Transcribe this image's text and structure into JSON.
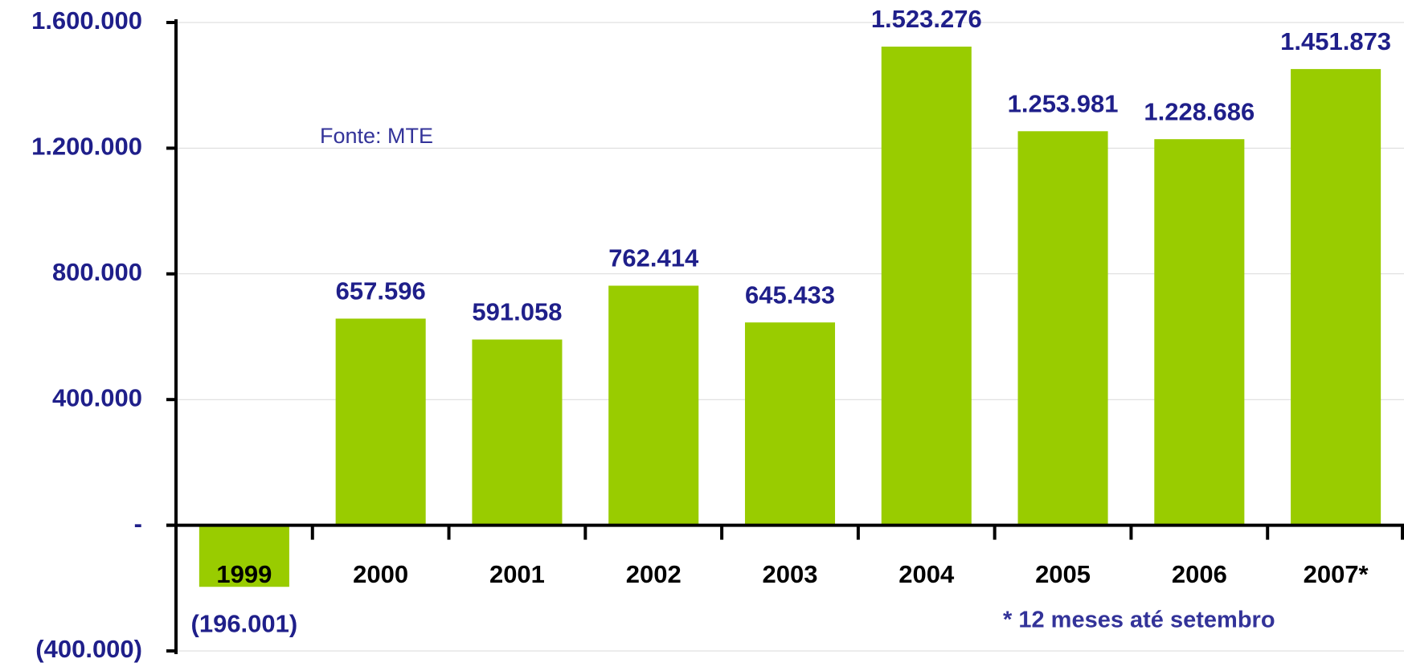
{
  "chart_data": {
    "type": "bar",
    "categories": [
      "1999",
      "2000",
      "2001",
      "2002",
      "2003",
      "2004",
      "2005",
      "2006",
      "2007*"
    ],
    "values": [
      -196001,
      657596,
      591058,
      762414,
      645433,
      1523276,
      1253981,
      1228686,
      1451873
    ],
    "value_labels": [
      "(196.001)",
      "657.596",
      "591.058",
      "762.414",
      "645.433",
      "1.523.276",
      "1.253.981",
      "1.228.686",
      "1.451.873"
    ],
    "color": "#99cc00",
    "ylim": [
      -400000,
      1600000
    ],
    "yticks": [
      {
        "value": -400000,
        "label": "(400.000)"
      },
      {
        "value": 0,
        "label": "-"
      },
      {
        "value": 400000,
        "label": "400.000"
      },
      {
        "value": 800000,
        "label": "800.000"
      },
      {
        "value": 1200000,
        "label": "1.200.000"
      },
      {
        "value": 1600000,
        "label": "1.600.000"
      }
    ],
    "grid": true,
    "annotations": [
      "Fonte: MTE",
      "* 12 meses até setembro"
    ]
  }
}
